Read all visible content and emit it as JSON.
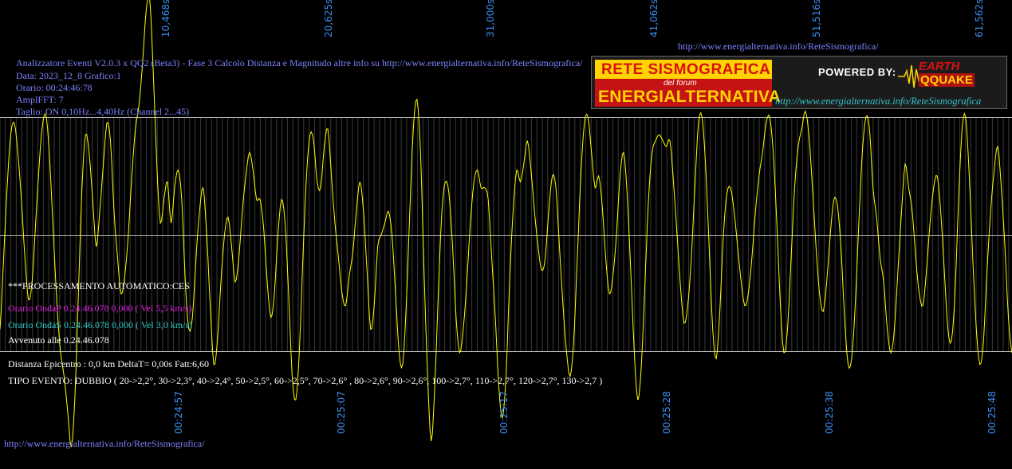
{
  "info": {
    "line1": "Analizzatore Eventi V2.0.3 x QQ2 (Beta3) - Fase 3 Calcolo Distanza e Magnitudo altre info su http://www.energialternativa.info/ReteSismografica/",
    "line2": "Data: 2023_12_8 Grafico:1",
    "line3": "Orario: 00:24:46:78",
    "line4": "AmplFFT: 7",
    "line5": "Taglio: ON 0,10Hz...4,40Hz      (Channel 2...45)"
  },
  "url_top": "http://www.energialternativa.info/ReteSismografica/",
  "url_bottom": "http://www.energialternativa.info/ReteSismografica/",
  "banner": {
    "line1": "RETE SISMOGRAFICA",
    "line2": "del forum",
    "line3": "ENERGIALTERNATIVA",
    "powered": "POWERED BY:",
    "logo_top": "EARTH",
    "logo_bottom": "QQUAKE",
    "url": "http://www.energialternativa.info/ReteSismografica"
  },
  "processing": {
    "title": "***PROCESSAMENTO AUTOMATICO:CES",
    "onda_p": "Orario OndaP 0.24.46.078  0,000 ( Vel 5,5 km/s)",
    "onda_s": "Orario OndaS 0.24.46.078  0,000 ( Vel 3,0 km/s)",
    "avvenuto": "Avvenuto alle 0.24.46.078",
    "distanza": "Distanza Epicentro : 0,0 km DeltaT= 0,00s  Fatt:6,60",
    "tipo": "TIPO EVENTO: DUBBIO ( 20->2,2°, 30->2,3°, 40->2,4°, 50->2,5°, 60->2,5°, 70->2,6° , 80->2,6°, 90->2,6°, 100->2,7°, 110->2,7°, 120->2,7°, 130->2,7 )"
  },
  "colors": {
    "background": "#000000",
    "trace": "#ffff00",
    "grid": "#b8b8b8",
    "info_text": "#7f82ff",
    "axis_labels": "#3b8ef0",
    "onda_p": "#e020e0",
    "onda_s": "#30c8c8"
  },
  "chart_data": {
    "type": "line",
    "title": "",
    "xlabel": "",
    "ylabel": "",
    "x_ticks_bottom": [
      "00:24:57",
      "00:25:07",
      "00:25:17",
      "00:25:28",
      "00:25:38",
      "00:25:48"
    ],
    "x_ticks_top": [
      "10,468s",
      "20,625s",
      "31,000s",
      "41,062s",
      "51,516s",
      "61,562s"
    ],
    "grid": true,
    "series": [
      {
        "values": [
          -0.8,
          -0.2,
          0.4,
          0.85,
          0.95,
          0.7,
          0.3,
          -0.2,
          -0.55,
          -0.4,
          0.1,
          0.6,
          0.95,
          1.0,
          0.6,
          0.0,
          -0.6,
          -1.0,
          -1.2,
          -1.5,
          -1.8,
          -1.4,
          -0.5,
          0.4,
          0.85,
          0.7,
          0.3,
          -0.1,
          0.2,
          0.6,
          0.95,
          0.8,
          0.2,
          -0.2,
          -0.5,
          -0.35,
          0.0,
          0.5,
          0.9,
          1.1,
          1.45,
          1.9,
          2.0,
          1.4,
          0.6,
          0.1,
          0.3,
          0.45,
          0.1,
          0.4,
          0.55,
          0.3,
          -0.4,
          -0.8,
          -0.7,
          -0.2,
          0.2,
          0.4,
          0.0,
          -0.6,
          -1.1,
          -0.9,
          -0.4,
          0.0,
          0.15,
          -0.1,
          -0.4,
          -0.2,
          0.2,
          0.5,
          0.7,
          0.55,
          0.3,
          0.3,
          0.05,
          -0.4,
          -0.7,
          -0.5,
          0.0,
          0.3,
          0.1,
          -0.5,
          -1.2,
          -1.4,
          -1.0,
          -0.2,
          0.5,
          0.85,
          0.8,
          0.45,
          0.4,
          0.75,
          0.9,
          0.5,
          0.1,
          -0.2,
          -0.5,
          -0.6,
          -0.35,
          -0.15,
          0.2,
          0.45,
          0.2,
          -0.3,
          -0.8,
          -0.6,
          -0.1,
          0.0,
          0.1,
          0.2,
          0.0,
          -0.5,
          -1.0,
          -1.1,
          -0.6,
          0.2,
          0.9,
          1.15,
          0.7,
          -0.3,
          -1.2,
          -1.75,
          -1.3,
          -0.5,
          0.2,
          0.45,
          0.35,
          -0.1,
          -0.7,
          -1.0,
          -0.8,
          -0.4,
          0.1,
          0.45,
          0.55,
          0.4,
          0.4,
          0.3,
          -0.2,
          -0.7,
          -1.3,
          -1.55,
          -1.2,
          -0.4,
          0.2,
          0.55,
          0.45,
          0.6,
          0.8,
          0.55,
          0.2,
          -0.1,
          -0.3,
          -0.2,
          0.2,
          0.5,
          0.4,
          -0.1,
          -0.6,
          -1.0,
          -1.2,
          -0.9,
          -0.2,
          0.5,
          0.95,
          1.0,
          0.7,
          0.4,
          0.5,
          0.25,
          -0.2,
          -0.5,
          -0.35,
          0.0,
          0.5,
          0.7,
          0.35,
          -0.3,
          -1.0,
          -1.4,
          -1.1,
          -0.4,
          0.3,
          0.7,
          0.8,
          0.85,
          0.8,
          0.75,
          0.8,
          0.45,
          0.0,
          -0.45,
          -0.75,
          -0.6,
          -0.2,
          0.4,
          0.95,
          1.0,
          0.6,
          -0.1,
          -0.8,
          -1.05,
          -0.65,
          0.0,
          0.35,
          0.4,
          0.2,
          -0.1,
          -0.4,
          -0.6,
          -0.5,
          -0.2,
          0.2,
          0.5,
          0.7,
          0.95,
          1.0,
          0.7,
          0.1,
          -0.6,
          -1.0,
          -0.8,
          -0.2,
          0.4,
          0.75,
          0.9,
          1.05,
          0.85,
          0.4,
          -0.1,
          -0.5,
          -0.65,
          -0.4,
          0.0,
          0.3,
          0.25,
          -0.1,
          -0.7,
          -1.1,
          -1.05,
          -0.6,
          0.1,
          0.7,
          1.0,
          0.9,
          0.4,
          0.15,
          -0.2,
          -0.4,
          -0.8,
          -1.0,
          -0.8,
          -0.3,
          0.2,
          0.6,
          0.4,
          0.2,
          -0.2,
          -0.5,
          -0.6,
          -0.3,
          0.1,
          0.4,
          0.5,
          0.2,
          -0.3,
          -0.8,
          -0.9,
          -0.5,
          0.3,
          0.9,
          1.0,
          0.5,
          -0.2,
          -0.8,
          -1.1,
          -0.9,
          -0.3,
          0.2,
          0.55,
          0.75,
          0.4,
          -0.1,
          -0.7,
          -1.0
        ]
      }
    ]
  }
}
